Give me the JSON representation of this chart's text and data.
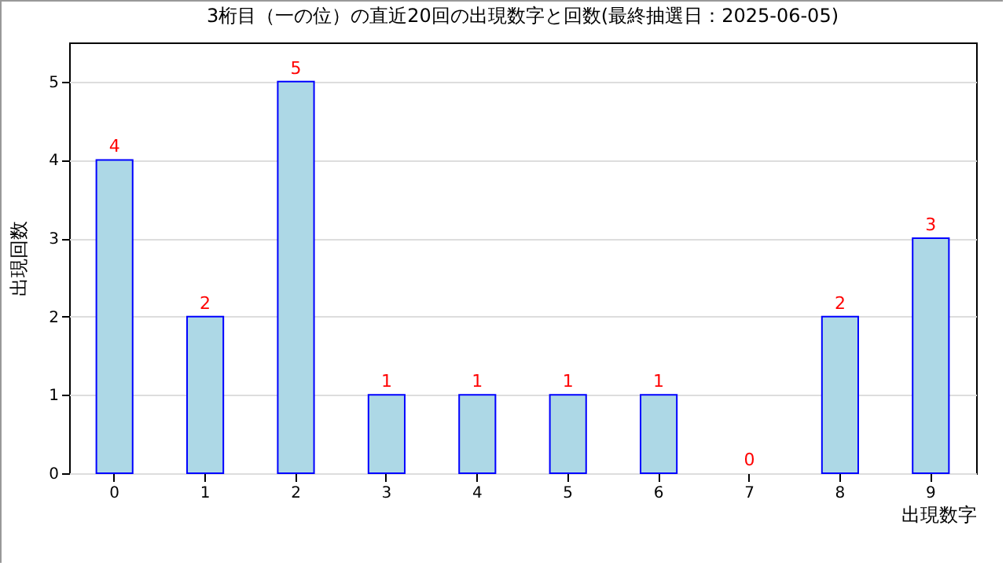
{
  "chart_data": {
    "type": "bar",
    "title": "3桁目（一の位）の直近20回の出現数字と回数(最終抽選日：2025-06-05)",
    "xlabel": "出現数字",
    "ylabel": "出現回数",
    "categories": [
      "0",
      "1",
      "2",
      "3",
      "4",
      "5",
      "6",
      "7",
      "8",
      "9"
    ],
    "values": [
      4,
      2,
      5,
      1,
      1,
      1,
      1,
      0,
      2,
      3
    ],
    "color": "#add8e6",
    "ylim": [
      0,
      5.5
    ],
    "yticks": [
      0,
      1,
      2,
      3,
      4,
      5
    ],
    "grid": "y",
    "data_labels": true
  }
}
